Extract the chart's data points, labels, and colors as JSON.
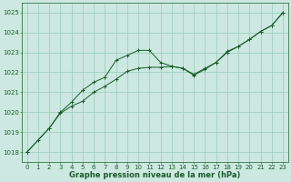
{
  "bg_color": "#cce8e0",
  "plot_bg_color": "#cce8e0",
  "grid_color": "#99ccbb",
  "line_color": "#1a5c2a",
  "xlabel": "Graphe pression niveau de la mer (hPa)",
  "xlabel_color": "#1a5c2a",
  "ylim": [
    1017.5,
    1025.5
  ],
  "xlim": [
    -0.5,
    23.5
  ],
  "yticks": [
    1018,
    1019,
    1020,
    1021,
    1022,
    1023,
    1024,
    1025
  ],
  "xticks": [
    0,
    1,
    2,
    3,
    4,
    5,
    6,
    7,
    8,
    9,
    10,
    11,
    12,
    13,
    14,
    15,
    16,
    17,
    18,
    19,
    20,
    21,
    22,
    23
  ],
  "line1_x": [
    0,
    1,
    2,
    3,
    4,
    5,
    6,
    7,
    8,
    9,
    10,
    11,
    12,
    13,
    14,
    15,
    16,
    17,
    18,
    19,
    20,
    21,
    22,
    23
  ],
  "line1_y": [
    1018.0,
    1018.6,
    1019.2,
    1019.95,
    1020.3,
    1020.55,
    1021.0,
    1021.3,
    1021.65,
    1022.05,
    1022.2,
    1022.25,
    1022.25,
    1022.3,
    1022.2,
    1021.9,
    1022.2,
    1022.5,
    1023.05,
    1023.3,
    1023.65,
    1024.05,
    1024.35,
    1025.0
  ],
  "line2_x": [
    0,
    2,
    3,
    4,
    5,
    6,
    7,
    8,
    9,
    10,
    11,
    12,
    13,
    14,
    15,
    16,
    17,
    18,
    19,
    20,
    21,
    22,
    23
  ],
  "line2_y": [
    1018.0,
    1019.2,
    1020.0,
    1020.5,
    1021.1,
    1021.5,
    1021.75,
    1022.6,
    1022.85,
    1023.1,
    1023.1,
    1022.5,
    1022.3,
    1022.2,
    1021.85,
    1022.15,
    1022.5,
    1023.0,
    1023.3,
    1023.65,
    1024.05,
    1024.35,
    1025.0
  ],
  "tick_fontsize": 5.0,
  "label_fontsize": 6.0,
  "tick_color": "#1a5c2a",
  "axis_color": "#1a5c2a"
}
